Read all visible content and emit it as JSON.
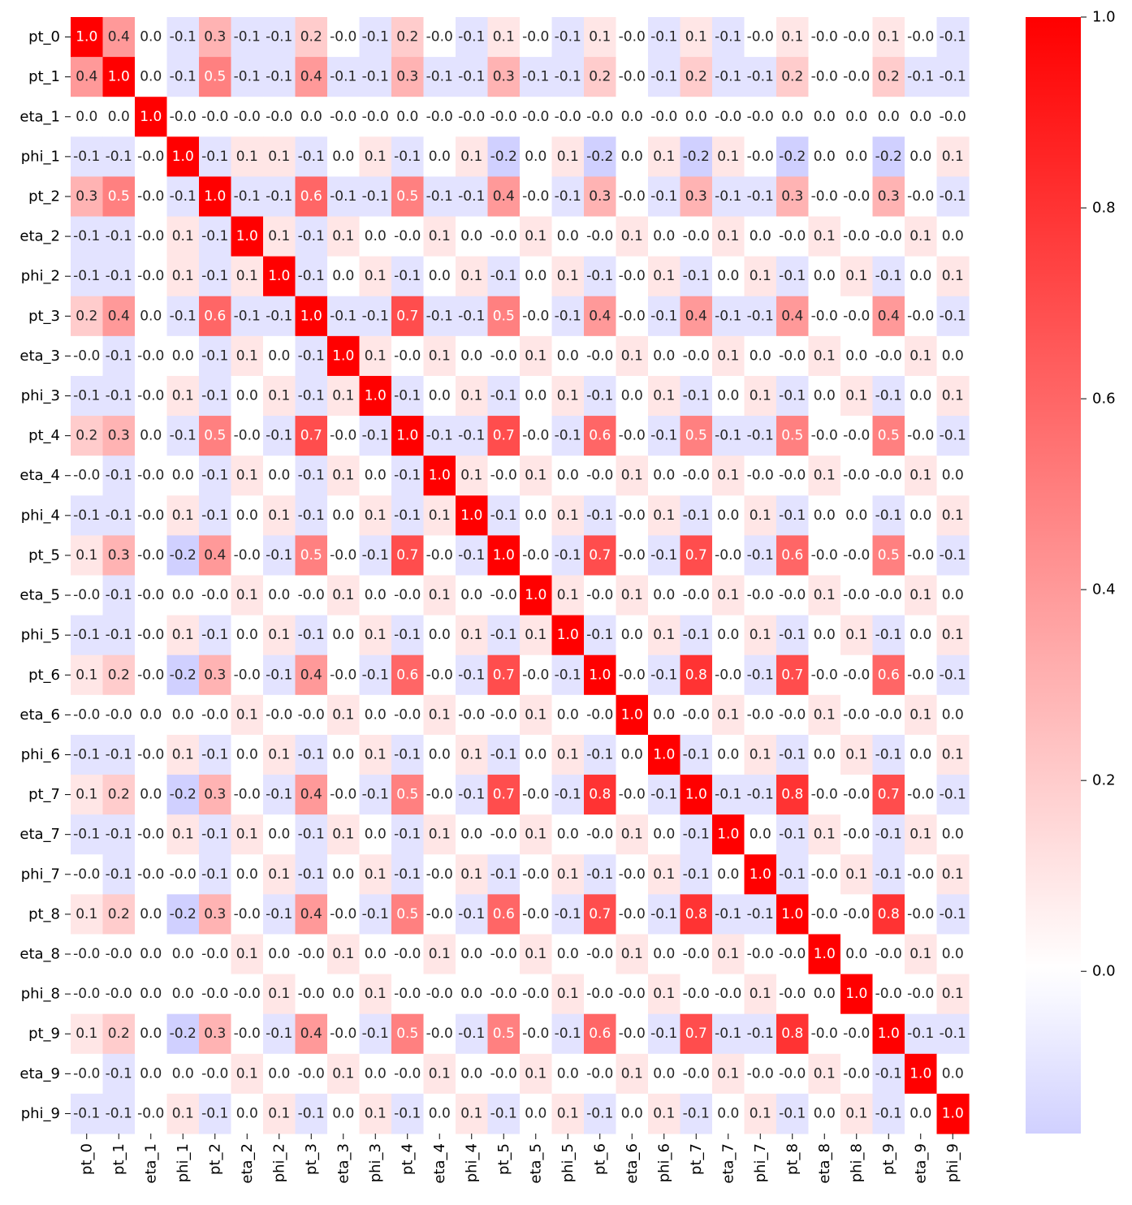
{
  "chart_data": {
    "type": "heatmap",
    "title": "",
    "xlabel": "",
    "ylabel": "",
    "labels": [
      "pt_0",
      "pt_1",
      "eta_1",
      "phi_1",
      "pt_2",
      "eta_2",
      "phi_2",
      "pt_3",
      "eta_3",
      "phi_3",
      "pt_4",
      "eta_4",
      "phi_4",
      "pt_5",
      "eta_5",
      "phi_5",
      "pt_6",
      "eta_6",
      "phi_6",
      "pt_7",
      "eta_7",
      "phi_7",
      "pt_8",
      "eta_8",
      "phi_8",
      "pt_9",
      "eta_9",
      "phi_9"
    ],
    "annotation_format": "1 decimal",
    "colormap": {
      "low": "#d0d0ff",
      "mid": "#ffffff",
      "high": "#ff0000",
      "center": 0
    },
    "colorbar": {
      "min": -0.17,
      "max": 1.0,
      "ticks": [
        "0.0",
        "0.2",
        "0.4",
        "0.6",
        "0.8",
        "1.0"
      ]
    },
    "matrix": [
      [
        1.0,
        0.4,
        0.0,
        -0.1,
        0.3,
        -0.1,
        -0.1,
        0.2,
        -0.0,
        -0.1,
        0.2,
        -0.0,
        -0.1,
        0.1,
        -0.0,
        -0.1,
        0.1,
        -0.0,
        -0.1,
        0.1,
        -0.1,
        -0.0,
        0.1,
        -0.0,
        -0.0,
        0.1,
        -0.0,
        -0.1
      ],
      [
        0.4,
        1.0,
        0.0,
        -0.1,
        0.5,
        -0.1,
        -0.1,
        0.4,
        -0.1,
        -0.1,
        0.3,
        -0.1,
        -0.1,
        0.3,
        -0.1,
        -0.1,
        0.2,
        -0.0,
        -0.1,
        0.2,
        -0.1,
        -0.1,
        0.2,
        -0.0,
        -0.0,
        0.2,
        -0.1,
        -0.1
      ],
      [
        0.0,
        0.0,
        1.0,
        -0.0,
        -0.0,
        -0.0,
        -0.0,
        0.0,
        -0.0,
        -0.0,
        0.0,
        -0.0,
        -0.0,
        -0.0,
        -0.0,
        -0.0,
        -0.0,
        0.0,
        -0.0,
        0.0,
        -0.0,
        -0.0,
        0.0,
        0.0,
        0.0,
        0.0,
        0.0,
        -0.0
      ],
      [
        -0.1,
        -0.1,
        -0.0,
        1.0,
        -0.1,
        0.1,
        0.1,
        -0.1,
        0.0,
        0.1,
        -0.1,
        0.0,
        0.1,
        -0.2,
        0.0,
        0.1,
        -0.2,
        0.0,
        0.1,
        -0.2,
        0.1,
        -0.0,
        -0.2,
        0.0,
        0.0,
        -0.2,
        0.0,
        0.1
      ],
      [
        0.3,
        0.5,
        -0.0,
        -0.1,
        1.0,
        -0.1,
        -0.1,
        0.6,
        -0.1,
        -0.1,
        0.5,
        -0.1,
        -0.1,
        0.4,
        -0.0,
        -0.1,
        0.3,
        -0.0,
        -0.1,
        0.3,
        -0.1,
        -0.1,
        0.3,
        -0.0,
        -0.0,
        0.3,
        -0.0,
        -0.1
      ],
      [
        -0.1,
        -0.1,
        -0.0,
        0.1,
        -0.1,
        1.0,
        0.1,
        -0.1,
        0.1,
        0.0,
        -0.0,
        0.1,
        0.0,
        -0.0,
        0.1,
        0.0,
        -0.0,
        0.1,
        0.0,
        -0.0,
        0.1,
        0.0,
        -0.0,
        0.1,
        -0.0,
        -0.0,
        0.1,
        0.0
      ],
      [
        -0.1,
        -0.1,
        -0.0,
        0.1,
        -0.1,
        0.1,
        1.0,
        -0.1,
        0.0,
        0.1,
        -0.1,
        0.0,
        0.1,
        -0.1,
        0.0,
        0.1,
        -0.1,
        -0.0,
        0.1,
        -0.1,
        0.0,
        0.1,
        -0.1,
        0.0,
        0.1,
        -0.1,
        0.0,
        0.1
      ],
      [
        0.2,
        0.4,
        0.0,
        -0.1,
        0.6,
        -0.1,
        -0.1,
        1.0,
        -0.1,
        -0.1,
        0.7,
        -0.1,
        -0.1,
        0.5,
        -0.0,
        -0.1,
        0.4,
        -0.0,
        -0.1,
        0.4,
        -0.1,
        -0.1,
        0.4,
        -0.0,
        -0.0,
        0.4,
        -0.0,
        -0.1
      ],
      [
        -0.0,
        -0.1,
        -0.0,
        0.0,
        -0.1,
        0.1,
        0.0,
        -0.1,
        1.0,
        0.1,
        -0.0,
        0.1,
        0.0,
        -0.0,
        0.1,
        0.0,
        -0.0,
        0.1,
        0.0,
        -0.0,
        0.1,
        0.0,
        -0.0,
        0.1,
        0.0,
        -0.0,
        0.1,
        0.0
      ],
      [
        -0.1,
        -0.1,
        -0.0,
        0.1,
        -0.1,
        0.0,
        0.1,
        -0.1,
        0.1,
        1.0,
        -0.1,
        0.0,
        0.1,
        -0.1,
        0.0,
        0.1,
        -0.1,
        0.0,
        0.1,
        -0.1,
        0.0,
        0.1,
        -0.1,
        0.0,
        0.1,
        -0.1,
        0.0,
        0.1
      ],
      [
        0.2,
        0.3,
        0.0,
        -0.1,
        0.5,
        -0.0,
        -0.1,
        0.7,
        -0.0,
        -0.1,
        1.0,
        -0.1,
        -0.1,
        0.7,
        -0.0,
        -0.1,
        0.6,
        -0.0,
        -0.1,
        0.5,
        -0.1,
        -0.1,
        0.5,
        -0.0,
        -0.0,
        0.5,
        -0.0,
        -0.1
      ],
      [
        -0.0,
        -0.1,
        -0.0,
        0.0,
        -0.1,
        0.1,
        0.0,
        -0.1,
        0.1,
        0.0,
        -0.1,
        1.0,
        0.1,
        -0.0,
        0.1,
        0.0,
        -0.0,
        0.1,
        0.0,
        -0.0,
        0.1,
        -0.0,
        -0.0,
        0.1,
        -0.0,
        -0.0,
        0.1,
        0.0
      ],
      [
        -0.1,
        -0.1,
        -0.0,
        0.1,
        -0.1,
        0.0,
        0.1,
        -0.1,
        0.0,
        0.1,
        -0.1,
        0.1,
        1.0,
        -0.1,
        0.0,
        0.1,
        -0.1,
        -0.0,
        0.1,
        -0.1,
        0.0,
        0.1,
        -0.1,
        0.0,
        0.0,
        -0.1,
        0.0,
        0.1
      ],
      [
        0.1,
        0.3,
        -0.0,
        -0.2,
        0.4,
        -0.0,
        -0.1,
        0.5,
        -0.0,
        -0.1,
        0.7,
        -0.0,
        -0.1,
        1.0,
        -0.0,
        -0.1,
        0.7,
        -0.0,
        -0.1,
        0.7,
        -0.0,
        -0.1,
        0.6,
        -0.0,
        -0.0,
        0.5,
        -0.0,
        -0.1
      ],
      [
        -0.0,
        -0.1,
        -0.0,
        0.0,
        -0.0,
        0.1,
        0.0,
        -0.0,
        0.1,
        0.0,
        -0.0,
        0.1,
        0.0,
        -0.0,
        1.0,
        0.1,
        -0.0,
        0.1,
        0.0,
        -0.0,
        0.1,
        -0.0,
        -0.0,
        0.1,
        -0.0,
        -0.0,
        0.1,
        0.0
      ],
      [
        -0.1,
        -0.1,
        -0.0,
        0.1,
        -0.1,
        0.0,
        0.1,
        -0.1,
        0.0,
        0.1,
        -0.1,
        0.0,
        0.1,
        -0.1,
        0.1,
        1.0,
        -0.1,
        0.0,
        0.1,
        -0.1,
        0.0,
        0.1,
        -0.1,
        0.0,
        0.1,
        -0.1,
        0.0,
        0.1
      ],
      [
        0.1,
        0.2,
        -0.0,
        -0.2,
        0.3,
        -0.0,
        -0.1,
        0.4,
        -0.0,
        -0.1,
        0.6,
        -0.0,
        -0.1,
        0.7,
        -0.0,
        -0.1,
        1.0,
        -0.0,
        -0.1,
        0.8,
        -0.0,
        -0.1,
        0.7,
        -0.0,
        -0.0,
        0.6,
        -0.0,
        -0.1
      ],
      [
        -0.0,
        -0.0,
        0.0,
        0.0,
        -0.0,
        0.1,
        -0.0,
        -0.0,
        0.1,
        0.0,
        -0.0,
        0.1,
        -0.0,
        -0.0,
        0.1,
        0.0,
        -0.0,
        1.0,
        0.0,
        -0.0,
        0.1,
        -0.0,
        -0.0,
        0.1,
        -0.0,
        -0.0,
        0.1,
        0.0
      ],
      [
        -0.1,
        -0.1,
        -0.0,
        0.1,
        -0.1,
        0.0,
        0.1,
        -0.1,
        0.0,
        0.1,
        -0.1,
        0.0,
        0.1,
        -0.1,
        0.0,
        0.1,
        -0.1,
        0.0,
        1.0,
        -0.1,
        0.0,
        0.1,
        -0.1,
        0.0,
        0.1,
        -0.1,
        0.0,
        0.1
      ],
      [
        0.1,
        0.2,
        0.0,
        -0.2,
        0.3,
        -0.0,
        -0.1,
        0.4,
        -0.0,
        -0.1,
        0.5,
        -0.0,
        -0.1,
        0.7,
        -0.0,
        -0.1,
        0.8,
        -0.0,
        -0.1,
        1.0,
        -0.1,
        -0.1,
        0.8,
        -0.0,
        -0.0,
        0.7,
        -0.0,
        -0.1
      ],
      [
        -0.1,
        -0.1,
        -0.0,
        0.1,
        -0.1,
        0.1,
        0.0,
        -0.1,
        0.1,
        0.0,
        -0.1,
        0.1,
        0.0,
        -0.0,
        0.1,
        0.0,
        -0.0,
        0.1,
        0.0,
        -0.1,
        1.0,
        0.0,
        -0.1,
        0.1,
        -0.0,
        -0.1,
        0.1,
        0.0
      ],
      [
        -0.0,
        -0.1,
        -0.0,
        -0.0,
        -0.1,
        0.0,
        0.1,
        -0.1,
        0.0,
        0.1,
        -0.1,
        -0.0,
        0.1,
        -0.1,
        -0.0,
        0.1,
        -0.1,
        -0.0,
        0.1,
        -0.1,
        0.0,
        1.0,
        -0.1,
        -0.0,
        0.1,
        -0.1,
        -0.0,
        0.1
      ],
      [
        0.1,
        0.2,
        0.0,
        -0.2,
        0.3,
        -0.0,
        -0.1,
        0.4,
        -0.0,
        -0.1,
        0.5,
        -0.0,
        -0.1,
        0.6,
        -0.0,
        -0.1,
        0.7,
        -0.0,
        -0.1,
        0.8,
        -0.1,
        -0.1,
        1.0,
        -0.0,
        -0.0,
        0.8,
        -0.0,
        -0.1
      ],
      [
        -0.0,
        -0.0,
        0.0,
        0.0,
        -0.0,
        0.1,
        0.0,
        -0.0,
        0.1,
        0.0,
        -0.0,
        0.1,
        0.0,
        -0.0,
        0.1,
        0.0,
        -0.0,
        0.1,
        0.0,
        -0.0,
        0.1,
        -0.0,
        -0.0,
        1.0,
        0.0,
        -0.0,
        0.1,
        0.0
      ],
      [
        -0.0,
        -0.0,
        0.0,
        0.0,
        -0.0,
        -0.0,
        0.1,
        -0.0,
        0.0,
        0.1,
        -0.0,
        -0.0,
        0.0,
        -0.0,
        -0.0,
        0.1,
        -0.0,
        -0.0,
        0.1,
        -0.0,
        -0.0,
        0.1,
        -0.0,
        0.0,
        1.0,
        -0.0,
        -0.0,
        0.1
      ],
      [
        0.1,
        0.2,
        0.0,
        -0.2,
        0.3,
        -0.0,
        -0.1,
        0.4,
        -0.0,
        -0.1,
        0.5,
        -0.0,
        -0.1,
        0.5,
        -0.0,
        -0.1,
        0.6,
        -0.0,
        -0.1,
        0.7,
        -0.1,
        -0.1,
        0.8,
        -0.0,
        -0.0,
        1.0,
        -0.1,
        -0.1
      ],
      [
        -0.0,
        -0.1,
        0.0,
        0.0,
        -0.0,
        0.1,
        0.0,
        -0.0,
        0.1,
        0.0,
        -0.0,
        0.1,
        0.0,
        -0.0,
        0.1,
        0.0,
        -0.0,
        0.1,
        0.0,
        -0.0,
        0.1,
        -0.0,
        -0.0,
        0.1,
        -0.0,
        -0.1,
        1.0,
        0.0
      ],
      [
        -0.1,
        -0.1,
        -0.0,
        0.1,
        -0.1,
        0.0,
        0.1,
        -0.1,
        0.0,
        0.1,
        -0.1,
        0.0,
        0.1,
        -0.1,
        0.0,
        0.1,
        -0.1,
        0.0,
        0.1,
        -0.1,
        0.0,
        0.1,
        -0.1,
        0.0,
        0.1,
        -0.1,
        0.0,
        1.0
      ]
    ]
  }
}
